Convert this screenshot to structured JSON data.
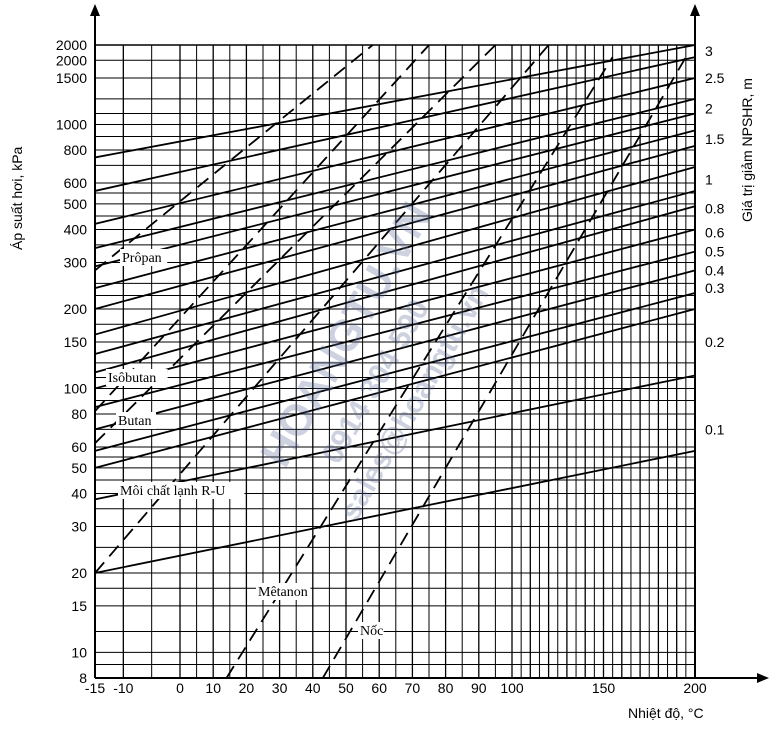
{
  "chart_data": {
    "type": "line",
    "xlabel": "Nhiệt độ, °C",
    "ylabel": "Áp suất hơi, kPa",
    "ylabel_right": "Giá trị giảm NPSHR, m",
    "x_tick_labels": [
      "-15",
      "-10",
      "0",
      "10",
      "20",
      "30",
      "40",
      "50",
      "60",
      "70",
      "80",
      "90",
      "100",
      "150",
      "200"
    ],
    "y_tick_labels": [
      "2000",
      "2000",
      "1500",
      "1000",
      "800",
      "600",
      "500",
      "400",
      "300",
      "200",
      "150",
      "100",
      "80",
      "60",
      "50",
      "40",
      "30",
      "20",
      "15",
      "10",
      "8"
    ],
    "y_right_tick_labels": [
      "3",
      "2.5",
      "2",
      "1.5",
      "1",
      "0.8",
      "0.6",
      "0.5",
      "0.4",
      "0.3",
      "0.2",
      "0.1"
    ],
    "xlim": [
      -15,
      200
    ],
    "ylim": [
      8,
      2000
    ],
    "y_scale": "log",
    "grid": true,
    "labels": [
      {
        "text": "Prôpan"
      },
      {
        "text": "Isôbutan"
      },
      {
        "text": "Butan"
      },
      {
        "text": "Môi chất lạnh R-U"
      },
      {
        "text": "Mêtanon"
      },
      {
        "text": "Nốc"
      }
    ],
    "series": [
      {
        "name": "Prôpan",
        "style": "dashed",
        "points": [
          [
            -15,
            280
          ],
          [
            58,
            2000
          ]
        ]
      },
      {
        "name": "Isôbutan",
        "style": "dashed",
        "points": [
          [
            -15,
            82
          ],
          [
            75,
            2000
          ]
        ]
      },
      {
        "name": "Butan",
        "style": "dashed",
        "points": [
          [
            -15,
            62
          ],
          [
            95,
            2000
          ]
        ]
      },
      {
        "name": "Môi chất lạnh R-U",
        "style": "dashed",
        "points": [
          [
            -15,
            20
          ],
          [
            120,
            2000
          ]
        ]
      },
      {
        "name": "Mêtanon",
        "style": "dashed",
        "points": [
          [
            14,
            8
          ],
          [
            155,
            1800
          ]
        ]
      },
      {
        "name": "Nốc",
        "style": "dashed",
        "points": [
          [
            43,
            8
          ],
          [
            195,
            1800
          ]
        ]
      }
    ]
  },
  "watermark": {
    "line1": "HOANGTU.VN",
    "line2": "0914 304 590",
    "line3": "sales@hoangtu.vn"
  }
}
